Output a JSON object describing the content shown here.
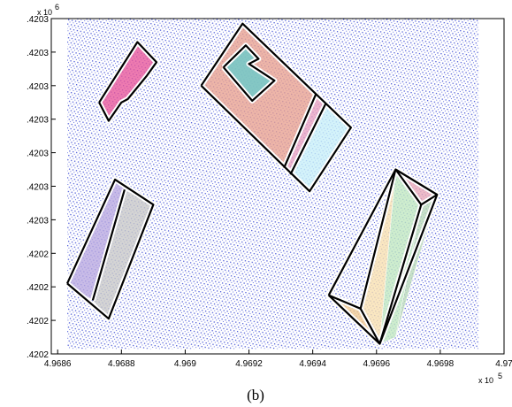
{
  "chart_data": {
    "type": "scatter",
    "title": "",
    "xlabel": "",
    "ylabel": "",
    "caption": "(b)",
    "x_exponent_label": "x 10",
    "x_exponent": "5",
    "y_exponent_label": "x 10",
    "y_exponent": "6",
    "xlim": [
      4.96858,
      4.97
    ],
    "ylim": [
      0,
      10
    ],
    "grid": false,
    "legend": "none",
    "x_ticks": [
      {
        "value": 4.9686,
        "label": "4.9686"
      },
      {
        "value": 4.9688,
        "label": "4.9688"
      },
      {
        "value": 4.969,
        "label": "4.969"
      },
      {
        "value": 4.9692,
        "label": "4.9692"
      },
      {
        "value": 4.9694,
        "label": "4.9694"
      },
      {
        "value": 4.9696,
        "label": "4.9696"
      },
      {
        "value": 4.9698,
        "label": "4.9698"
      },
      {
        "value": 4.97,
        "label": "4.97"
      }
    ],
    "y_ticks": [
      {
        "value": 0,
        "label": ".4202"
      },
      {
        "value": 1,
        "label": ".4202"
      },
      {
        "value": 2,
        "label": ".4202"
      },
      {
        "value": 3,
        "label": ".4202"
      },
      {
        "value": 4,
        "label": ".4203"
      },
      {
        "value": 5,
        "label": ".4203"
      },
      {
        "value": 6,
        "label": ".4203"
      },
      {
        "value": 7,
        "label": ".4203"
      },
      {
        "value": 8,
        "label": ".4203"
      },
      {
        "value": 9,
        "label": ".4203"
      },
      {
        "value": 10,
        "label": ".4203"
      }
    ],
    "point_cloud": {
      "color": "#2233cc",
      "extent_x": [
        4.96863,
        4.96992
      ],
      "extent_y": [
        0.15,
        10
      ]
    },
    "roof_planes": [
      {
        "color": "#e8559a",
        "points": [
          [
            4.96873,
            7.5
          ],
          [
            4.96885,
            9.3
          ],
          [
            4.96891,
            8.7
          ],
          [
            4.96888,
            8.3
          ],
          [
            4.96882,
            7.6
          ],
          [
            4.9688,
            7.5
          ],
          [
            4.96876,
            6.95
          ],
          [
            4.96873,
            7.5
          ]
        ]
      },
      {
        "color": "#e8a090",
        "points": [
          [
            4.96905,
            8.0
          ],
          [
            4.96918,
            9.85
          ],
          [
            4.96941,
            7.75
          ],
          [
            4.96931,
            5.55
          ],
          [
            4.96905,
            8.0
          ]
        ]
      },
      {
        "color": "#66cccc",
        "points": [
          [
            4.96912,
            8.55
          ],
          [
            4.96919,
            9.2
          ],
          [
            4.96923,
            8.8
          ],
          [
            4.9692,
            8.65
          ],
          [
            4.96928,
            8.15
          ],
          [
            4.96921,
            7.55
          ],
          [
            4.96912,
            8.55
          ]
        ]
      },
      {
        "color": "#e8a0c0",
        "points": [
          [
            4.96931,
            5.55
          ],
          [
            4.96941,
            7.75
          ],
          [
            4.96944,
            7.45
          ],
          [
            4.96933,
            5.35
          ],
          [
            4.96931,
            5.55
          ]
        ]
      },
      {
        "color": "#c8f0f8",
        "points": [
          [
            4.96933,
            5.35
          ],
          [
            4.96944,
            7.45
          ],
          [
            4.96952,
            6.75
          ],
          [
            4.96939,
            4.85
          ],
          [
            4.96933,
            5.35
          ]
        ]
      },
      {
        "color": "#b8a8e0",
        "points": [
          [
            4.96863,
            2.1
          ],
          [
            4.96878,
            5.2
          ],
          [
            4.96881,
            4.9
          ],
          [
            4.96871,
            1.6
          ],
          [
            4.96863,
            2.1
          ]
        ]
      },
      {
        "color": "#c8c8c8",
        "points": [
          [
            4.96871,
            1.6
          ],
          [
            4.96881,
            4.9
          ],
          [
            4.9689,
            4.45
          ],
          [
            4.96876,
            1.05
          ],
          [
            4.96871,
            1.6
          ]
        ]
      },
      {
        "color": "#e8a8b8",
        "points": [
          [
            4.96966,
            5.5
          ],
          [
            4.96974,
            4.45
          ],
          [
            4.96979,
            4.75
          ],
          [
            4.96966,
            5.5
          ]
        ]
      },
      {
        "color": "#c0e8c0",
        "points": [
          [
            4.96966,
            5.5
          ],
          [
            4.96974,
            4.45
          ],
          [
            4.96966,
            0.5
          ],
          [
            4.96961,
            0.3
          ],
          [
            4.96966,
            5.5
          ]
        ]
      },
      {
        "color": "#b8d8b8",
        "points": [
          [
            4.96974,
            4.45
          ],
          [
            4.96979,
            4.75
          ],
          [
            4.96966,
            0.5
          ],
          [
            4.96974,
            4.45
          ]
        ]
      },
      {
        "color": "#f0c890",
        "points": [
          [
            4.96945,
            1.75
          ],
          [
            4.96955,
            1.35
          ],
          [
            4.96961,
            0.3
          ],
          [
            4.96945,
            1.75
          ]
        ]
      },
      {
        "color": "#f8e0b0",
        "points": [
          [
            4.96955,
            1.35
          ],
          [
            4.96966,
            5.5
          ],
          [
            4.96961,
            0.3
          ],
          [
            4.96955,
            1.35
          ]
        ]
      }
    ],
    "outlines": [
      [
        [
          4.96873,
          7.5
        ],
        [
          4.96885,
          9.3
        ],
        [
          4.96891,
          8.7
        ],
        [
          4.96888,
          8.3
        ],
        [
          4.96882,
          7.6
        ],
        [
          4.9688,
          7.5
        ],
        [
          4.96876,
          6.95
        ],
        [
          4.96873,
          7.5
        ]
      ],
      [
        [
          4.96905,
          8.0
        ],
        [
          4.96918,
          9.85
        ],
        [
          4.96952,
          6.75
        ],
        [
          4.96939,
          4.85
        ],
        [
          4.96905,
          8.0
        ]
      ],
      [
        [
          4.96931,
          5.55
        ],
        [
          4.96941,
          7.75
        ]
      ],
      [
        [
          4.96933,
          5.35
        ],
        [
          4.96944,
          7.45
        ]
      ],
      [
        [
          4.96912,
          8.55
        ],
        [
          4.96919,
          9.2
        ],
        [
          4.96923,
          8.8
        ],
        [
          4.9692,
          8.65
        ],
        [
          4.96928,
          8.15
        ],
        [
          4.96921,
          7.55
        ],
        [
          4.96912,
          8.55
        ]
      ],
      [
        [
          4.96863,
          2.1
        ],
        [
          4.96878,
          5.2
        ],
        [
          4.9689,
          4.45
        ],
        [
          4.96876,
          1.05
        ],
        [
          4.96863,
          2.1
        ]
      ],
      [
        [
          4.96871,
          1.6
        ],
        [
          4.96881,
          4.9
        ]
      ],
      [
        [
          4.96945,
          1.75
        ],
        [
          4.96966,
          5.5
        ],
        [
          4.96979,
          4.75
        ],
        [
          4.96961,
          0.3
        ],
        [
          4.96945,
          1.75
        ]
      ],
      [
        [
          4.96966,
          5.5
        ],
        [
          4.96974,
          4.45
        ],
        [
          4.96979,
          4.75
        ]
      ],
      [
        [
          4.96974,
          4.45
        ],
        [
          4.96961,
          0.3
        ]
      ],
      [
        [
          4.96945,
          1.75
        ],
        [
          4.96955,
          1.35
        ],
        [
          4.96966,
          5.5
        ]
      ],
      [
        [
          4.96955,
          1.35
        ],
        [
          4.96961,
          0.3
        ]
      ]
    ]
  }
}
